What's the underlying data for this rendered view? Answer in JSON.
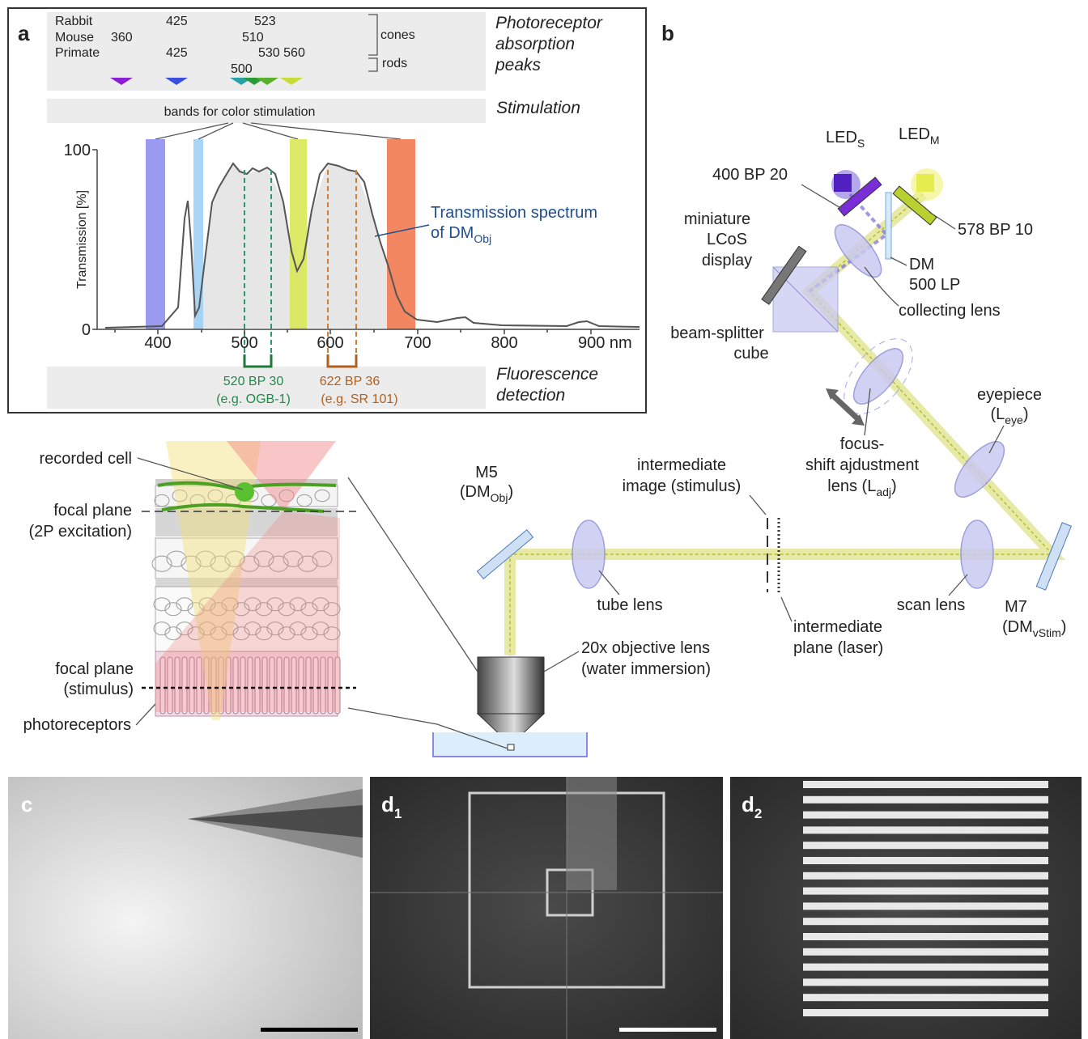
{
  "panel_a": {
    "label": "a",
    "species": [
      {
        "name": "Rabbit",
        "peaks": [
          "425",
          "523"
        ]
      },
      {
        "name": "Mouse",
        "peaks": [
          "360",
          "510"
        ]
      },
      {
        "name": "Primate",
        "peaks": [
          "425",
          "530 560",
          "500"
        ]
      }
    ],
    "cones": "cones",
    "rods": "rods",
    "absorption_title": [
      "Photoreceptor",
      "absorption",
      "peaks"
    ],
    "stimulation": "Stimulation",
    "bands_label": "bands for color stimulation",
    "y_label": "Transmission [%]",
    "y_ticks": [
      "100",
      "0"
    ],
    "x_ticks": [
      "400",
      "500",
      "600",
      "700",
      "800",
      "900 nm"
    ],
    "spectrum_label": {
      "line1": "Transmission spectrum",
      "line2": "of DM",
      "sub": "Obj"
    },
    "filters": [
      {
        "name": "520 BP 30",
        "example": "(e.g. OGB-1)"
      },
      {
        "name": "622 BP 36",
        "example": "(e.g. SR 101)"
      }
    ],
    "detection": [
      "Fluorescence",
      "detection"
    ]
  },
  "panel_b": {
    "label": "b",
    "led_s": {
      "text": "LED",
      "sub": "S"
    },
    "led_m": {
      "text": "LED",
      "sub": "M"
    },
    "filter_s": "400 BP 20",
    "filter_m": "578 BP 10",
    "display": [
      "miniature",
      "LCoS",
      "display"
    ],
    "dm": [
      "DM",
      "500 LP"
    ],
    "collecting_lens": "collecting lens",
    "beam_splitter": [
      "beam-splitter",
      "cube"
    ],
    "focus_lens": {
      "line1": "focus-",
      "line2": "shift ajdustment",
      "line3": "lens (L",
      "sub": "adj",
      "close": ")"
    },
    "eyepiece": {
      "line1": "eyepiece",
      "line2": "(L",
      "sub": "eye",
      "close": ")"
    },
    "intermediate_image": [
      "intermediate",
      "image (stimulus)"
    ],
    "m5": {
      "line1": "M5",
      "line2": "(DM",
      "sub": "Obj",
      "close": ")"
    },
    "tube_lens": "tube lens",
    "scan_lens": "scan lens",
    "m7": {
      "line1": "M7",
      "line2": "(DM",
      "sub": "vStim",
      "close": ")"
    },
    "intermediate_plane": [
      "intermediate",
      "plane (laser)"
    ],
    "objective": [
      "20x objective lens",
      "(water immersion)"
    ]
  },
  "retina": {
    "recorded_cell": "recorded cell",
    "focal_2p": [
      "focal plane",
      "(2P excitation)"
    ],
    "focal_stim": [
      "focal plane",
      "(stimulus)"
    ],
    "photoreceptors": "photoreceptors"
  },
  "panel_c": {
    "label": "c"
  },
  "panel_d1": {
    "label": "d",
    "sub": "1"
  },
  "panel_d2": {
    "label": "d",
    "sub": "2"
  }
}
